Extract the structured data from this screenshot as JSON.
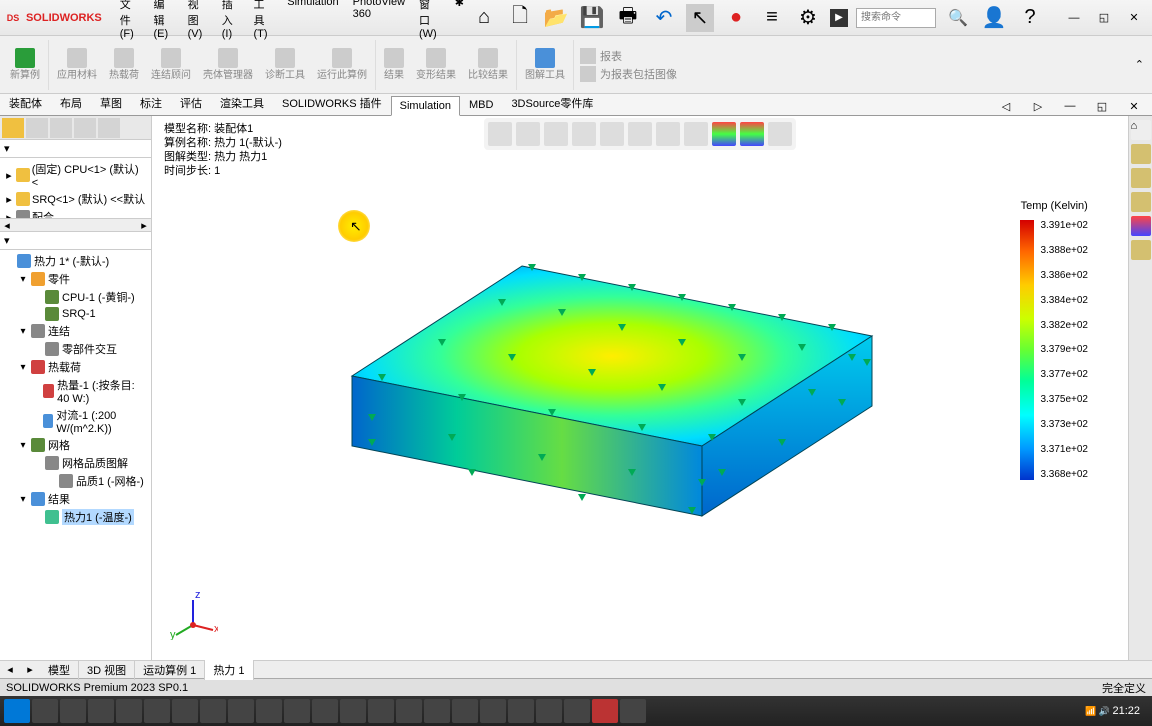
{
  "app": {
    "name": "SOLIDWORKS",
    "logo_char": "DS"
  },
  "menus": [
    "文件(F)",
    "编辑(E)",
    "视图(V)",
    "插入(I)",
    "工具(T)",
    "Simulation",
    "PhotoView 360",
    "窗口(W)"
  ],
  "search_placeholder": "搜索命令",
  "ribbon": [
    {
      "label": "新算例",
      "color": "#2a9d3a"
    },
    {
      "label": "应用材料",
      "color": "#aaa"
    },
    {
      "label": "热载荷",
      "color": "#aaa"
    },
    {
      "label": "连结顾问",
      "color": "#aaa"
    },
    {
      "label": "壳体管理器",
      "color": "#aaa"
    },
    {
      "label": "诊断工具",
      "color": "#aaa"
    },
    {
      "label": "运行此算例",
      "color": "#aaa"
    },
    {
      "label": "结果",
      "color": "#aaa"
    },
    {
      "label": "变形结果",
      "color": "#aaa"
    },
    {
      "label": "比较结果",
      "color": "#aaa"
    }
  ],
  "ribbon_right": [
    "图解工具",
    "报表",
    "为报表包括图像"
  ],
  "tabs": [
    "装配体",
    "布局",
    "草图",
    "标注",
    "评估",
    "渲染工具",
    "SOLIDWORKS 插件",
    "Simulation",
    "MBD",
    "3DSource零件库"
  ],
  "active_tab": "Simulation",
  "vp_info": [
    "模型名称: 装配体1",
    "算例名称: 热力 1(-默认-)",
    "图解类型: 热力 热力1",
    "时间步长: 1"
  ],
  "top_tree": [
    {
      "label": "(固定) CPU<1> (默认) <",
      "icon": "#f0c040",
      "tog": "▸"
    },
    {
      "label": "SRQ<1> (默认) <<默认",
      "icon": "#f0c040",
      "tog": "▸"
    },
    {
      "label": "配合",
      "icon": "#888",
      "tog": "▸"
    }
  ],
  "sim_tree": [
    {
      "ind": 0,
      "tog": "",
      "ico": "#4a90d9",
      "label": "热力 1* (-默认-)"
    },
    {
      "ind": 1,
      "tog": "▾",
      "ico": "#f0a030",
      "label": "零件"
    },
    {
      "ind": 2,
      "tog": "",
      "ico": "#5a8a3a",
      "label": "CPU-1 (-黄铜-)"
    },
    {
      "ind": 2,
      "tog": "",
      "ico": "#5a8a3a",
      "label": "SRQ-1"
    },
    {
      "ind": 1,
      "tog": "▾",
      "ico": "#888",
      "label": "连结"
    },
    {
      "ind": 2,
      "tog": "",
      "ico": "#888",
      "label": "零部件交互"
    },
    {
      "ind": 1,
      "tog": "▾",
      "ico": "#d04040",
      "label": "热载荷"
    },
    {
      "ind": 2,
      "tog": "",
      "ico": "#d04040",
      "label": "热量-1 (:按条目: 40 W:)"
    },
    {
      "ind": 2,
      "tog": "",
      "ico": "#4a90d9",
      "label": "对流-1 (:200 W/(m^2.K))"
    },
    {
      "ind": 1,
      "tog": "▾",
      "ico": "#5a8a3a",
      "label": "网格"
    },
    {
      "ind": 2,
      "tog": "",
      "ico": "#888",
      "label": "网格品质图解"
    },
    {
      "ind": 3,
      "tog": "",
      "ico": "#888",
      "label": "品质1 (-网格-)"
    },
    {
      "ind": 1,
      "tog": "▾",
      "ico": "#4a90d9",
      "label": "结果"
    },
    {
      "ind": 2,
      "tog": "",
      "ico": "#40c090",
      "label": "热力1 (-温度-)",
      "sel": true
    }
  ],
  "legend": {
    "title": "Temp (Kelvin)",
    "values": [
      "3.391e+02",
      "3.388e+02",
      "3.386e+02",
      "3.384e+02",
      "3.382e+02",
      "3.379e+02",
      "3.377e+02",
      "3.375e+02",
      "3.373e+02",
      "3.371e+02",
      "3.368e+02"
    ]
  },
  "bottom_tabs": [
    "模型",
    "3D 视图",
    "运动算例 1",
    "热力 1"
  ],
  "active_bottom_tab": "热力 1",
  "status": {
    "left": "SOLIDWORKS Premium 2023 SP0.1",
    "right": "完全定义"
  },
  "taskbar_time": "21:22",
  "colors": {
    "cursor_highlight": "#ffdd00",
    "heat_top": "#d40000",
    "heat_mid": "#ffee00",
    "heat_bot": "#0033cc"
  }
}
